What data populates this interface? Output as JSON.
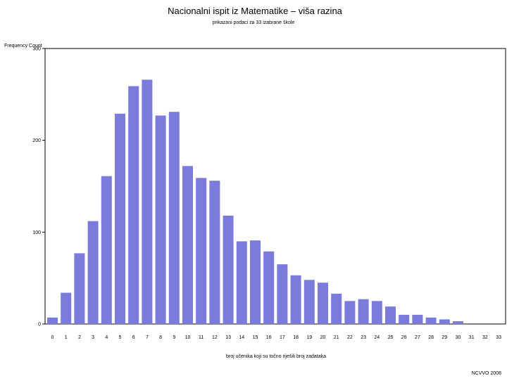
{
  "chart_data": {
    "type": "bar",
    "title": "Nacionalni ispit iz Matematike – viša razina",
    "subtitle": "prikazani podaci za 33 izabrane škole",
    "ylabel": "Frequency Count",
    "xlabel": "broj učenika koji su točno riješili broj zadataka",
    "footnote": "NCVVO 2008",
    "categories": [
      "0",
      "1",
      "2",
      "3",
      "4",
      "5",
      "6",
      "7",
      "8",
      "9",
      "10",
      "11",
      "12",
      "13",
      "14",
      "15",
      "16",
      "17",
      "18",
      "19",
      "20",
      "21",
      "22",
      "23",
      "24",
      "25",
      "26",
      "27",
      "28",
      "29",
      "30",
      "31",
      "32",
      "33"
    ],
    "values": [
      7,
      34,
      77,
      112,
      161,
      229,
      259,
      266,
      227,
      231,
      172,
      159,
      156,
      118,
      90,
      91,
      79,
      65,
      53,
      48,
      45,
      33,
      25,
      27,
      25,
      19,
      10,
      10,
      7,
      5,
      3,
      0,
      0,
      0
    ],
    "ylim": [
      0,
      300
    ],
    "yticks": [
      0,
      100,
      200,
      300
    ],
    "bar_color": "#7b7bdc",
    "grid": false
  }
}
